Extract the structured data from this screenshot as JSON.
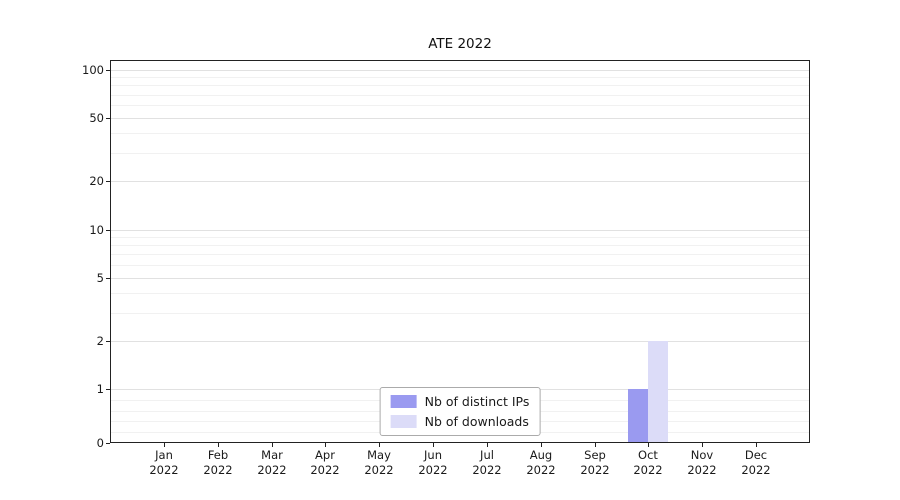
{
  "chart_data": {
    "type": "bar",
    "title": "ATE 2022",
    "x_year": "2022",
    "categories": [
      "Jan",
      "Feb",
      "Mar",
      "Apr",
      "May",
      "Jun",
      "Jul",
      "Aug",
      "Sep",
      "Oct",
      "Nov",
      "Dec"
    ],
    "series": [
      {
        "name": "Nb of distinct IPs",
        "color": "#9a9af0",
        "values": [
          0,
          0,
          0,
          0,
          0,
          0,
          0,
          0,
          0,
          1,
          0,
          0
        ]
      },
      {
        "name": "Nb of downloads",
        "color": "#dcdcf8",
        "values": [
          0,
          0,
          0,
          0,
          0,
          0,
          0,
          0,
          0,
          2,
          0,
          0
        ]
      }
    ],
    "yticks": [
      0,
      1,
      2,
      5,
      10,
      20,
      50,
      100
    ],
    "ylim": [
      0,
      100
    ],
    "yscale": "symlog",
    "grid": {
      "major": [
        1,
        2,
        5,
        10,
        20,
        50,
        100
      ],
      "minor": [
        0.2,
        0.4,
        0.6,
        0.8,
        3,
        4,
        6,
        7,
        8,
        9,
        30,
        40,
        60,
        70,
        80,
        90
      ]
    },
    "legend": {
      "labels": [
        "Nb of distinct IPs",
        "Nb of downloads"
      ],
      "position": "lower-center"
    }
  }
}
